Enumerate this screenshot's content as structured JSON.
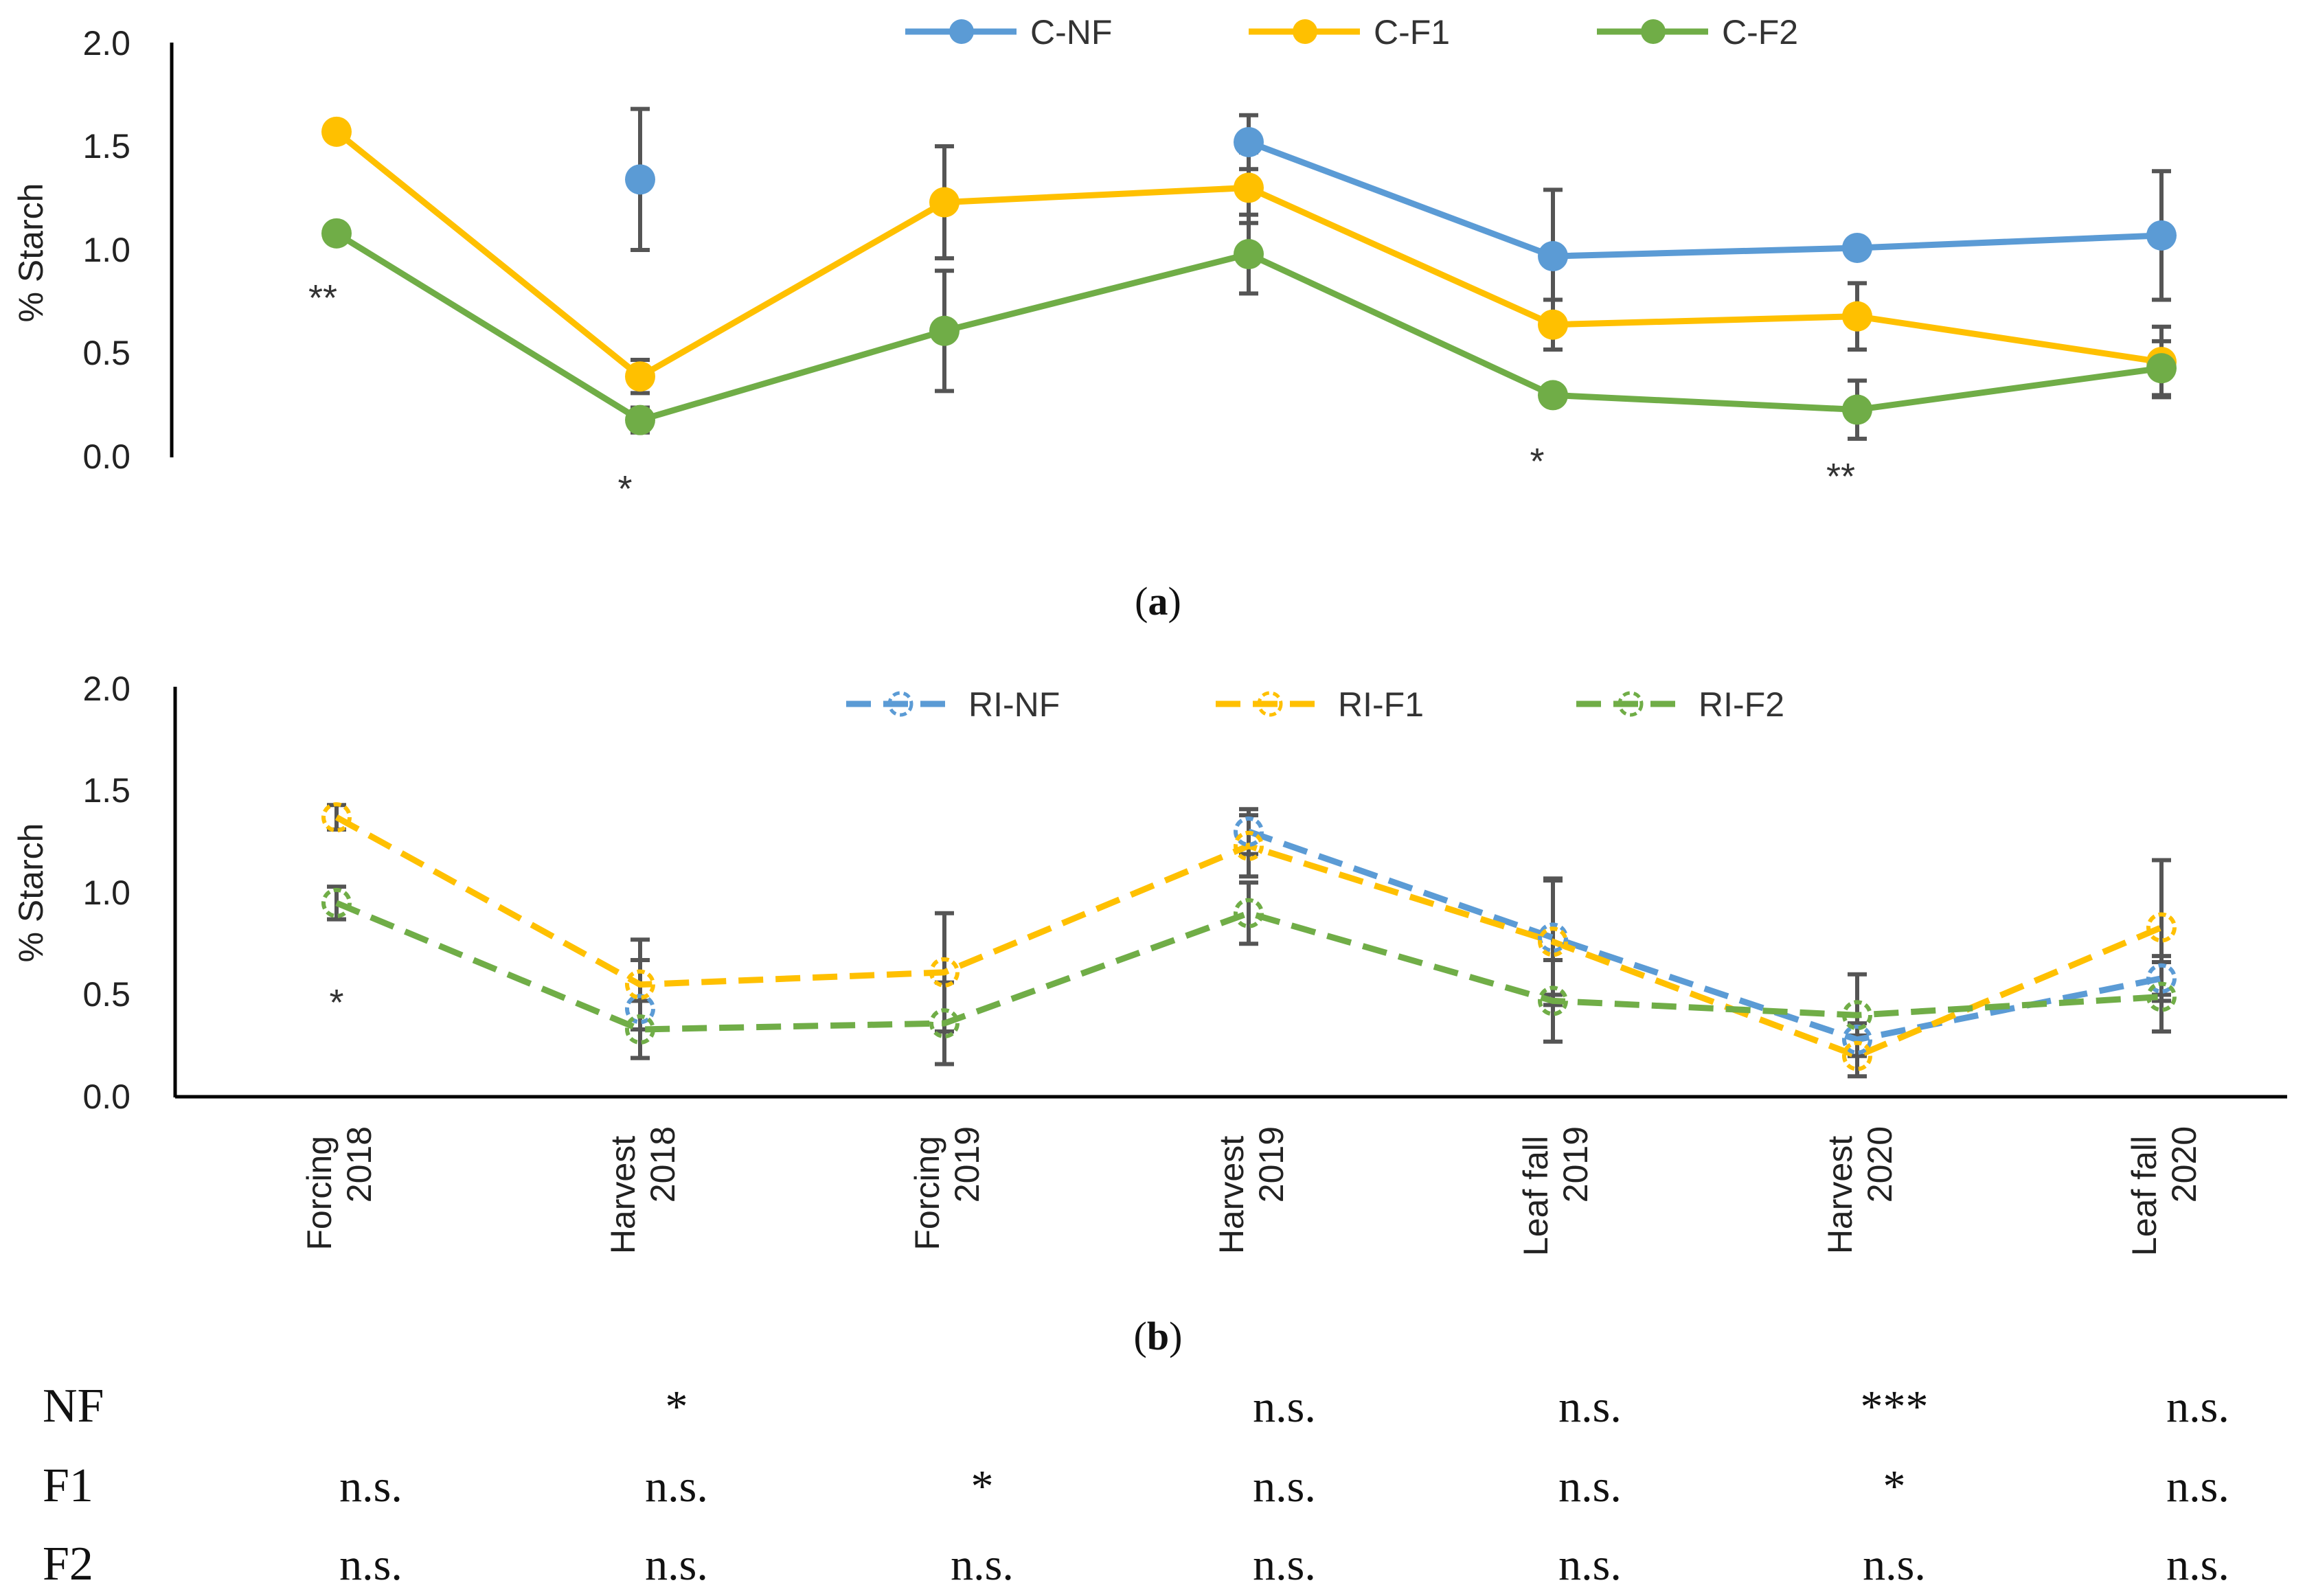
{
  "categories": [
    "Forcing 2018",
    "Harvest 2018",
    "Forcing 2019",
    "Harvest 2019",
    "Leaf fall 2019",
    "Harvest 2020",
    "Leaf fall 2020"
  ],
  "category_lines": [
    [
      "Forcing",
      "2018"
    ],
    [
      "Harvest",
      "2018"
    ],
    [
      "Forcing",
      "2019"
    ],
    [
      "Harvest",
      "2019"
    ],
    [
      "Leaf fall",
      "2019"
    ],
    [
      "Harvest",
      "2020"
    ],
    [
      "Leaf fall",
      "2020"
    ]
  ],
  "colors": {
    "nf": "#5B9BD5",
    "f1": "#FFC000",
    "f2": "#70AD47",
    "errorbar": "#555555",
    "axis": "#000000"
  },
  "chart_data": [
    {
      "type": "line",
      "panel_label": "a",
      "ylabel": "% Starch",
      "ylim": [
        0,
        2
      ],
      "yticks": [
        "0.0",
        "0.5",
        "1.0",
        "1.5",
        "2.0"
      ],
      "legend_position": "top",
      "series": [
        {
          "name": "C-NF",
          "color": "#5B9BD5",
          "style": "solid",
          "values": [
            null,
            1.34,
            null,
            1.52,
            0.97,
            1.01,
            1.07
          ],
          "errors": [
            null,
            0.34,
            null,
            0.13,
            0.32,
            0.04,
            0.31
          ]
        },
        {
          "name": "C-F1",
          "color": "#FFC000",
          "style": "solid",
          "values": [
            1.57,
            0.39,
            1.23,
            1.3,
            0.64,
            0.68,
            0.46
          ],
          "errors": [
            null,
            0.08,
            0.27,
            0.17,
            0.12,
            0.16,
            0.17
          ]
        },
        {
          "name": "C-F2",
          "color": "#70AD47",
          "style": "solid",
          "values": [
            1.08,
            0.18,
            0.61,
            0.98,
            0.3,
            0.23,
            0.43
          ],
          "errors": [
            null,
            0.06,
            0.29,
            0.19,
            0.04,
            0.14,
            0.13
          ]
        }
      ],
      "annotations": [
        {
          "category": 0,
          "text": "**"
        },
        {
          "category": 1,
          "text": "*"
        },
        {
          "category": 4,
          "text": "*"
        },
        {
          "category": 5,
          "text": "**"
        }
      ]
    },
    {
      "type": "line",
      "panel_label": "b",
      "ylabel": "% Starch",
      "ylim": [
        0,
        2
      ],
      "yticks": [
        "0.0",
        "0.5",
        "1.0",
        "1.5",
        "2.0"
      ],
      "legend_position": "top",
      "series": [
        {
          "name": "RI-NF",
          "color": "#5B9BD5",
          "style": "dashed",
          "values": [
            null,
            0.43,
            null,
            1.3,
            0.78,
            0.28,
            0.58
          ],
          "errors": [
            null,
            0.24,
            null,
            0.11,
            0.28,
            0.08,
            0.11
          ]
        },
        {
          "name": "RI-F1",
          "color": "#FFC000",
          "style": "dashed",
          "values": [
            1.37,
            0.55,
            0.61,
            1.23,
            0.76,
            0.2,
            0.83
          ],
          "errors": [
            0.06,
            0.22,
            0.29,
            0.15,
            0.31,
            0.1,
            0.33
          ]
        },
        {
          "name": "RI-F2",
          "color": "#70AD47",
          "style": "dashed",
          "values": [
            0.95,
            0.33,
            0.36,
            0.9,
            0.47,
            0.4,
            0.49
          ],
          "errors": [
            0.08,
            0.14,
            0.2,
            0.15,
            0.2,
            0.2,
            0.17
          ]
        }
      ],
      "annotations": [
        {
          "category": 0,
          "text": "*"
        }
      ]
    }
  ],
  "significance_table": {
    "rows": [
      {
        "label": "NF",
        "values": [
          "",
          "*",
          "",
          "n.s.",
          "n.s.",
          "***",
          "n.s."
        ]
      },
      {
        "label": "F1",
        "values": [
          "n.s.",
          "n.s.",
          "*",
          "n.s.",
          "n.s.",
          "*",
          "n.s."
        ]
      },
      {
        "label": "F2",
        "values": [
          "n.s.",
          "n.s.",
          "n.s.",
          "n.s.",
          "n.s.",
          "n.s.",
          "n.s."
        ]
      }
    ]
  }
}
